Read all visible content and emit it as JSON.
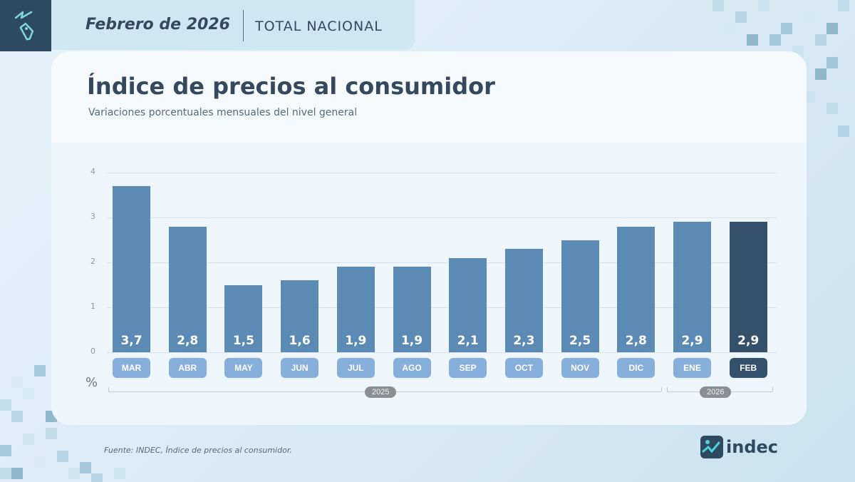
{
  "header": {
    "date": "Febrero de 2026",
    "scope": "TOTAL NACIONAL",
    "logo_icon": "price-tag-icon"
  },
  "panel": {
    "title": "Índice de precios al consumidor",
    "subtitle": "Variaciones porcentuales mensuales del nivel general"
  },
  "chart_data": {
    "type": "bar",
    "title": "Índice de precios al consumidor",
    "subtitle": "Variaciones porcentuales mensuales del nivel general",
    "categories": [
      "MAR",
      "ABR",
      "MAY",
      "JUN",
      "JUL",
      "AGO",
      "SEP",
      "OCT",
      "NOV",
      "DIC",
      "ENE",
      "FEB"
    ],
    "values": [
      3.7,
      2.8,
      1.5,
      1.6,
      1.9,
      1.9,
      2.1,
      2.3,
      2.5,
      2.8,
      2.9,
      2.9
    ],
    "value_labels": [
      "3,7",
      "2,8",
      "1,5",
      "1,6",
      "1,9",
      "1,9",
      "2,1",
      "2,3",
      "2,5",
      "2,8",
      "2,9",
      "2,9"
    ],
    "year_groups": [
      {
        "label": "2025",
        "from": "MAR",
        "to": "DIC"
      },
      {
        "label": "2026",
        "from": "ENE",
        "to": "FEB"
      }
    ],
    "xlabel": "",
    "ylabel": "%",
    "ylim": [
      0,
      4
    ],
    "yticks": [
      "0",
      "1",
      "2",
      "3",
      "4"
    ],
    "grid": true,
    "legend": null,
    "highlight": "FEB",
    "colors": {
      "bar": "#5b8ab5",
      "bar_highlight": "#34506b",
      "month_tag": "#86b0db",
      "month_tag_highlight": "#34506b",
      "year_pill": "#8b8f93"
    }
  },
  "footer": {
    "source": "Fuente: INDEC, Índice de precios al consumidor.",
    "brand": "indec"
  }
}
